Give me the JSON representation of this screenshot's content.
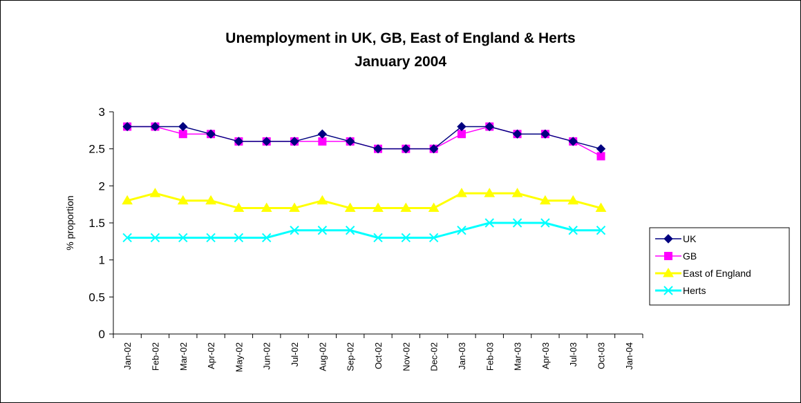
{
  "chart_data": {
    "type": "line",
    "title": "Unemployment in UK, GB, East of England & Herts",
    "subtitle": "January 2004",
    "ylabel": "% proportion",
    "xlabel": "",
    "ylim": [
      0,
      3
    ],
    "yticks": [
      "0",
      "0.5",
      "1",
      "1.5",
      "2",
      "2.5",
      "3"
    ],
    "categories": [
      "Jan-02",
      "Feb-02",
      "Mar-02",
      "Apr-02",
      "May-02",
      "Jun-02",
      "Jul-02",
      "Aug-02",
      "Sep-02",
      "Oct-02",
      "Nov-02",
      "Dec-02",
      "Jan-03",
      "Feb-03",
      "Mar-03",
      "Apr-03",
      "Jul-03",
      "Oct-03",
      "Jan-04"
    ],
    "grid": false,
    "legend_position": "right",
    "series": [
      {
        "name": "UK",
        "color": "#000080",
        "marker": "diamond",
        "values": [
          2.8,
          2.8,
          2.8,
          2.7,
          2.6,
          2.6,
          2.6,
          2.7,
          2.6,
          2.5,
          2.5,
          2.5,
          2.8,
          2.8,
          2.7,
          2.7,
          2.6,
          2.5,
          null
        ]
      },
      {
        "name": "GB",
        "color": "#FF00FF",
        "marker": "square",
        "values": [
          2.8,
          2.8,
          2.7,
          2.7,
          2.6,
          2.6,
          2.6,
          2.6,
          2.6,
          2.5,
          2.5,
          2.5,
          2.7,
          2.8,
          2.7,
          2.7,
          2.6,
          2.4,
          null
        ]
      },
      {
        "name": "East of England",
        "color": "#FFFF00",
        "marker": "triangle",
        "values": [
          1.8,
          1.9,
          1.8,
          1.8,
          1.7,
          1.7,
          1.7,
          1.8,
          1.7,
          1.7,
          1.7,
          1.7,
          1.9,
          1.9,
          1.9,
          1.8,
          1.8,
          1.7,
          null
        ]
      },
      {
        "name": "Herts",
        "color": "#00FFFF",
        "marker": "x",
        "values": [
          1.3,
          1.3,
          1.3,
          1.3,
          1.3,
          1.3,
          1.4,
          1.4,
          1.4,
          1.3,
          1.3,
          1.3,
          1.4,
          1.5,
          1.5,
          1.5,
          1.4,
          1.4,
          null
        ]
      }
    ]
  }
}
